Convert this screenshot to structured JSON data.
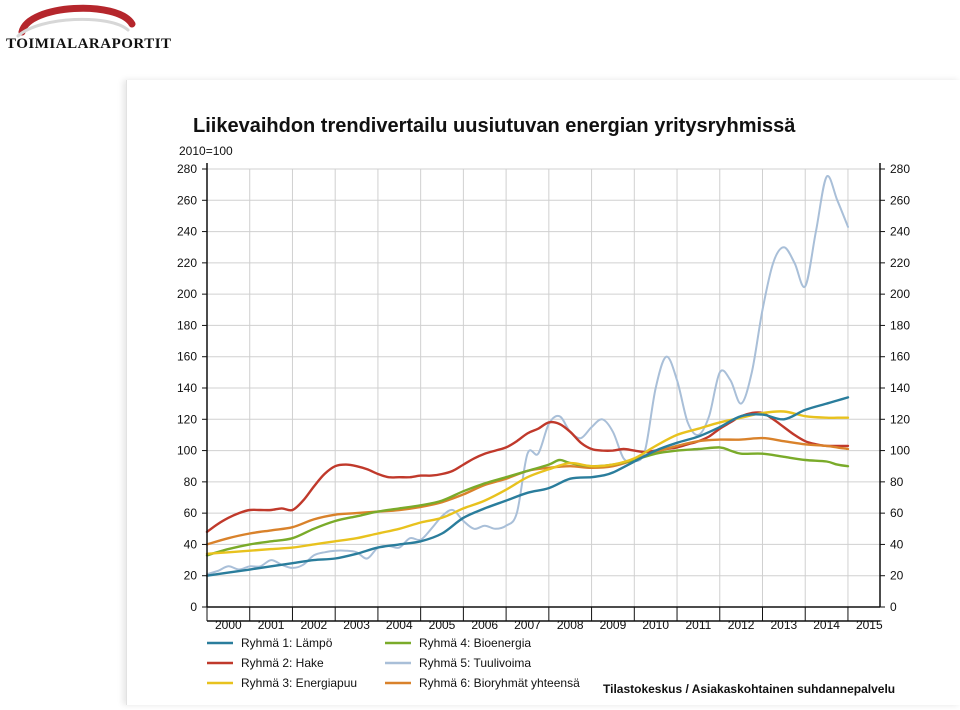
{
  "brand": {
    "name": "TOIMIALARAPORTIT",
    "accent_color": "#b5262c"
  },
  "chart_data": {
    "type": "line",
    "title": "Liikevaihdon trendivertailu uusiutuvan energian yritysryhmissä",
    "index_label": "2010=100",
    "source": "Tilastokeskus / Asiakaskohtainen suhdannepalvelu",
    "ylim": [
      0,
      280
    ],
    "y_ticks": [
      0,
      20,
      40,
      60,
      80,
      100,
      120,
      140,
      160,
      180,
      200,
      220,
      240,
      260,
      280
    ],
    "xlim": [
      2000,
      2015.75
    ],
    "x_tick_labels": [
      "2000",
      "2001",
      "2002",
      "2003",
      "2004",
      "2005",
      "2006",
      "2007",
      "2008",
      "2009",
      "2010",
      "2011",
      "2012",
      "2013",
      "2014",
      "2015"
    ],
    "grid": true,
    "legend_position": "bottom",
    "series": [
      {
        "name": "Ryhmä 1: Lämpö",
        "color": "#2a7d9c",
        "x": [
          2000.0,
          2000.5,
          2001.0,
          2001.5,
          2002.0,
          2002.5,
          2003.0,
          2003.5,
          2004.0,
          2004.5,
          2005.0,
          2005.5,
          2006.0,
          2006.5,
          2007.0,
          2007.5,
          2008.0,
          2008.5,
          2009.0,
          2009.25,
          2009.5,
          2010.0,
          2010.5,
          2011.0,
          2011.5,
          2012.0,
          2012.5,
          2013.0,
          2013.5,
          2014.0,
          2014.5,
          2014.75,
          2015.0
        ],
        "y": [
          20,
          22,
          24,
          26,
          28,
          30,
          31,
          34,
          38,
          40,
          42,
          47,
          57,
          63,
          68,
          73,
          76,
          82,
          83,
          84,
          86,
          93,
          100,
          105,
          109,
          115,
          122,
          123,
          120,
          126,
          130,
          132,
          134
        ]
      },
      {
        "name": "Ryhmä 2: Hake",
        "color": "#c0392b",
        "x": [
          2000.0,
          2000.25,
          2000.5,
          2000.75,
          2001.0,
          2001.25,
          2001.5,
          2001.75,
          2002.0,
          2002.25,
          2002.5,
          2002.75,
          2003.0,
          2003.25,
          2003.5,
          2003.75,
          2004.0,
          2004.25,
          2004.5,
          2004.75,
          2005.0,
          2005.25,
          2005.5,
          2005.75,
          2006.0,
          2006.25,
          2006.5,
          2006.75,
          2007.0,
          2007.25,
          2007.5,
          2007.75,
          2008.0,
          2008.25,
          2008.5,
          2008.75,
          2009.0,
          2009.25,
          2009.5,
          2009.75,
          2010.0,
          2010.25,
          2010.5,
          2010.75,
          2011.0,
          2011.25,
          2011.5,
          2011.75,
          2012.0,
          2012.25,
          2012.5,
          2012.75,
          2013.0,
          2013.25,
          2013.5,
          2013.75,
          2014.0,
          2014.25,
          2014.5,
          2014.75,
          2015.0
        ],
        "y": [
          48,
          53,
          57,
          60,
          62,
          62,
          62,
          63,
          62,
          68,
          77,
          85,
          90,
          91,
          90,
          88,
          85,
          83,
          83,
          83,
          84,
          84,
          85,
          87,
          91,
          95,
          98,
          100,
          102,
          106,
          111,
          114,
          118,
          117,
          112,
          105,
          101,
          100,
          100,
          101,
          100,
          99,
          100,
          101,
          102,
          104,
          106,
          109,
          114,
          118,
          122,
          124,
          124,
          120,
          115,
          110,
          106,
          104,
          103,
          103,
          103
        ]
      },
      {
        "name": "Ryhmä 3: Energiapuu",
        "color": "#e8c21e",
        "x": [
          2000.0,
          2000.5,
          2001.0,
          2001.5,
          2002.0,
          2002.5,
          2003.0,
          2003.5,
          2004.0,
          2004.5,
          2005.0,
          2005.5,
          2006.0,
          2006.5,
          2007.0,
          2007.5,
          2008.0,
          2008.5,
          2009.0,
          2009.5,
          2010.0,
          2010.5,
          2011.0,
          2011.5,
          2012.0,
          2012.5,
          2013.0,
          2013.5,
          2014.0,
          2014.5,
          2014.75,
          2015.0
        ],
        "y": [
          34,
          35,
          36,
          37,
          38,
          40,
          42,
          44,
          47,
          50,
          54,
          57,
          63,
          68,
          75,
          83,
          88,
          92,
          90,
          91,
          95,
          103,
          110,
          114,
          118,
          121,
          124,
          125,
          122,
          121,
          121,
          121
        ]
      },
      {
        "name": "Ryhmä 4: Bioenergia",
        "color": "#7aab2a",
        "x": [
          2000.0,
          2000.5,
          2001.0,
          2001.5,
          2002.0,
          2002.5,
          2003.0,
          2003.5,
          2004.0,
          2004.5,
          2005.0,
          2005.5,
          2006.0,
          2006.5,
          2007.0,
          2007.5,
          2008.0,
          2008.25,
          2008.5,
          2009.0,
          2009.5,
          2010.0,
          2010.5,
          2011.0,
          2011.5,
          2012.0,
          2012.25,
          2012.5,
          2013.0,
          2013.5,
          2014.0,
          2014.5,
          2014.75,
          2015.0
        ],
        "y": [
          33,
          37,
          40,
          42,
          44,
          50,
          55,
          58,
          61,
          63,
          65,
          68,
          74,
          79,
          83,
          87,
          91,
          94,
          92,
          90,
          91,
          94,
          98,
          100,
          101,
          102,
          100,
          98,
          98,
          96,
          94,
          93,
          91,
          90
        ]
      },
      {
        "name": "Ryhmä 5: Tuulivoima",
        "color": "#a9bfd8",
        "x": [
          2000.0,
          2000.25,
          2000.5,
          2000.75,
          2001.0,
          2001.25,
          2001.5,
          2001.75,
          2002.0,
          2002.25,
          2002.5,
          2002.75,
          2003.0,
          2003.25,
          2003.5,
          2003.75,
          2004.0,
          2004.25,
          2004.5,
          2004.75,
          2005.0,
          2005.25,
          2005.5,
          2005.75,
          2006.0,
          2006.25,
          2006.5,
          2006.75,
          2007.0,
          2007.25,
          2007.5,
          2007.75,
          2008.0,
          2008.25,
          2008.5,
          2008.75,
          2009.0,
          2009.25,
          2009.5,
          2009.75,
          2010.0,
          2010.25,
          2010.5,
          2010.75,
          2011.0,
          2011.25,
          2011.5,
          2011.75,
          2012.0,
          2012.25,
          2012.5,
          2012.75,
          2013.0,
          2013.25,
          2013.5,
          2013.75,
          2014.0,
          2014.25,
          2014.5,
          2014.75,
          2015.0
        ],
        "y": [
          21,
          23,
          26,
          24,
          26,
          26,
          30,
          27,
          25,
          27,
          33,
          35,
          36,
          36,
          35,
          31,
          38,
          39,
          38,
          44,
          43,
          50,
          58,
          62,
          55,
          50,
          52,
          50,
          52,
          60,
          98,
          98,
          117,
          122,
          112,
          108,
          115,
          120,
          112,
          95,
          93,
          100,
          140,
          160,
          145,
          118,
          110,
          122,
          150,
          145,
          130,
          150,
          190,
          220,
          230,
          220,
          205,
          240,
          275,
          260,
          243
        ]
      },
      {
        "name": "Ryhmä 6: Bioryhmät yhteensä",
        "color": "#d9822b",
        "x": [
          2000.0,
          2000.5,
          2001.0,
          2001.5,
          2002.0,
          2002.5,
          2003.0,
          2003.5,
          2004.0,
          2004.5,
          2005.0,
          2005.5,
          2006.0,
          2006.5,
          2007.0,
          2007.5,
          2008.0,
          2008.5,
          2009.0,
          2009.5,
          2010.0,
          2010.5,
          2011.0,
          2011.5,
          2012.0,
          2012.5,
          2013.0,
          2013.5,
          2014.0,
          2014.5,
          2014.75,
          2015.0
        ],
        "y": [
          40,
          44,
          47,
          49,
          51,
          56,
          59,
          60,
          61,
          62,
          64,
          67,
          72,
          78,
          82,
          87,
          89,
          90,
          89,
          90,
          94,
          99,
          103,
          106,
          107,
          107,
          108,
          106,
          104,
          103,
          102,
          101
        ]
      }
    ]
  }
}
